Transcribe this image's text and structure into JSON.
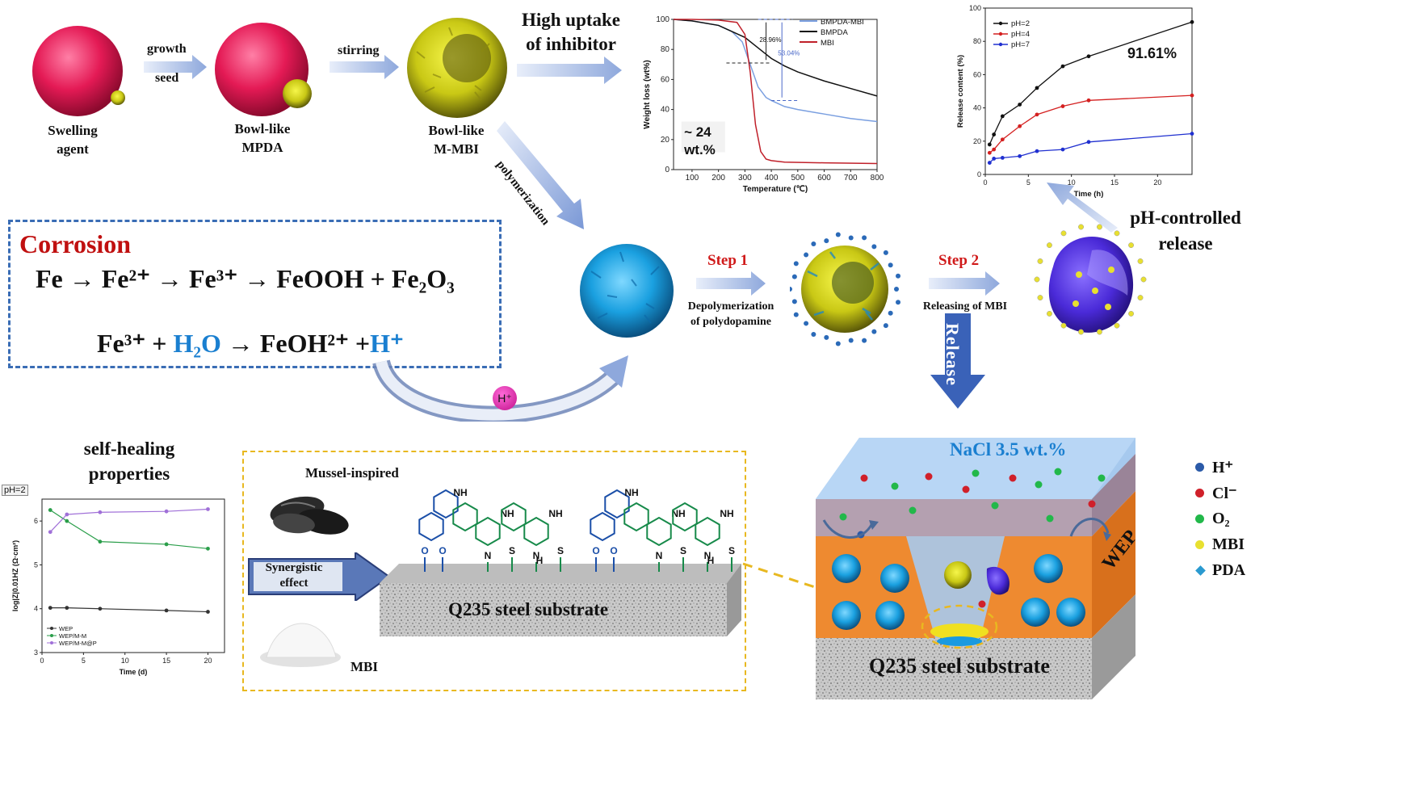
{
  "synthesis": {
    "swelling_label": "Swelling\nagent",
    "bowl_mpda_label": "Bowl-like\nMPDA",
    "bowl_mmbi_label": "Bowl-like\nM-MBI",
    "growth_label": "growth",
    "seed_label": "seed",
    "stirring_label": "stirring",
    "polymerization_label": "polymerization",
    "uptake_label": "High uptake\nof inhibitor"
  },
  "corrosion": {
    "title": "Corrosion",
    "eq1": "Fe → Fe²⁺ → Fe³⁺ → FeOOH + Fe₂O₃",
    "eq2_a": "Fe³⁺ + ",
    "eq2_water": "H₂O",
    "eq2_b": " → FeOH²⁺ +",
    "eq2_h": "H⁺",
    "hplus_bubble": "H⁺"
  },
  "steps": {
    "step1": "Step 1",
    "step1_desc": "Depolymerization\nof polydopamine",
    "step2": "Step 2",
    "step2_desc": "Releasing of MBI",
    "release": "Release",
    "ph_release": "pH-controlled\nrelease"
  },
  "tga_chart": {
    "chart_data": {
      "type": "line",
      "xlabel": "Temperature (℃)",
      "ylabel": "Weight loss (wt%)",
      "xlim": [
        30,
        800
      ],
      "ylim": [
        0,
        100
      ],
      "xticks": [
        100,
        200,
        300,
        400,
        500,
        600,
        700,
        800
      ],
      "yticks": [
        0,
        20,
        40,
        60,
        80,
        100
      ],
      "series": [
        {
          "name": "BMPDA-MBI",
          "color": "#7a9fe0",
          "x": [
            30,
            100,
            200,
            250,
            290,
            320,
            350,
            380,
            400,
            450,
            500,
            600,
            700,
            800
          ],
          "y": [
            100,
            99,
            96,
            92,
            85,
            70,
            55,
            48,
            46,
            42,
            40,
            37,
            34,
            32
          ]
        },
        {
          "name": "BMPDA",
          "color": "#111111",
          "x": [
            30,
            100,
            200,
            300,
            350,
            400,
            450,
            500,
            600,
            700,
            800
          ],
          "y": [
            100,
            99,
            96,
            88,
            81,
            74,
            69,
            65,
            59,
            54,
            49
          ]
        },
        {
          "name": "MBI",
          "color": "#c0202a",
          "x": [
            30,
            100,
            200,
            270,
            300,
            320,
            340,
            360,
            380,
            400,
            450,
            600,
            800
          ],
          "y": [
            100,
            100,
            99.5,
            98,
            90,
            65,
            30,
            12,
            7,
            6,
            5,
            4.5,
            4
          ]
        }
      ],
      "annotations": [
        "28.96%",
        "53.04%",
        "~ 24\nwt.%"
      ]
    }
  },
  "release_chart": {
    "chart_data": {
      "type": "line",
      "xlabel": "Time (h)",
      "ylabel": "Release content (%)",
      "xlim": [
        0,
        24
      ],
      "ylim": [
        0,
        100
      ],
      "xticks": [
        0,
        5,
        10,
        15,
        20
      ],
      "yticks": [
        0,
        20,
        40,
        60,
        80,
        100
      ],
      "series": [
        {
          "name": "pH=2",
          "color": "#111111",
          "x": [
            0.5,
            1,
            2,
            4,
            6,
            9,
            12,
            24
          ],
          "y": [
            18,
            24,
            35,
            42,
            52,
            65,
            71,
            91.6
          ]
        },
        {
          "name": "pH=4",
          "color": "#d42020",
          "x": [
            0.5,
            1,
            2,
            4,
            6,
            9,
            12,
            24
          ],
          "y": [
            13,
            15,
            21,
            29,
            36,
            41,
            44.5,
            47.5
          ]
        },
        {
          "name": "pH=7",
          "color": "#2030d0",
          "x": [
            0.5,
            1,
            2,
            4,
            6,
            9,
            12,
            24
          ],
          "y": [
            7,
            9.5,
            10,
            11,
            14,
            15,
            19.5,
            24.5
          ]
        }
      ],
      "annotation": "91.61%"
    }
  },
  "impedance_chart": {
    "title": "self-healing\nproperties",
    "condition": "pH=2",
    "chart_data": {
      "type": "line",
      "xlabel": "Time (d)",
      "ylabel": "log|Z|0.01HZ (Ω·cm²)",
      "xlim": [
        0,
        22
      ],
      "ylim": [
        3,
        6.5
      ],
      "xticks": [
        0,
        5,
        10,
        15,
        20
      ],
      "yticks": [
        3,
        4,
        5,
        6
      ],
      "series": [
        {
          "name": "WEP",
          "color": "#333333",
          "x": [
            1,
            3,
            7,
            15,
            20
          ],
          "y": [
            4.02,
            4.02,
            4.0,
            3.96,
            3.93
          ]
        },
        {
          "name": "WEP/M-M",
          "color": "#2a9e4a",
          "x": [
            1,
            3,
            7,
            15,
            20
          ],
          "y": [
            6.25,
            6.0,
            5.53,
            5.47,
            5.37
          ]
        },
        {
          "name": "WEP/M-M@P",
          "color": "#a070d8",
          "x": [
            1,
            3,
            7,
            15,
            20
          ],
          "y": [
            5.75,
            6.15,
            6.2,
            6.22,
            6.27
          ]
        }
      ]
    }
  },
  "mechanism": {
    "mussel_label": "Mussel-inspired",
    "synergy_label": "Synergistic\neffect",
    "mbi_label": "MBI",
    "substrate_label": "Q235 steel substrate",
    "nh_label": "NH",
    "s_label": "S",
    "n_label": "N",
    "o_label": "O",
    "h_label": "H"
  },
  "coating": {
    "nacl_label": "NaCl 3.5 wt.%",
    "wep_label": "WEP",
    "substrate_label": "Q235 steel substrate",
    "legend": [
      {
        "label": "H⁺",
        "color": "#2b5aa8",
        "shape": "circle"
      },
      {
        "label": "Cl⁻",
        "color": "#d0202a",
        "shape": "circle"
      },
      {
        "label": "O₂",
        "color": "#22b84a",
        "shape": "circle"
      },
      {
        "label": "MBI",
        "color": "#e8e030",
        "shape": "circle"
      },
      {
        "label": "PDA",
        "color": "#2a9ad0",
        "shape": "diamond"
      }
    ]
  }
}
